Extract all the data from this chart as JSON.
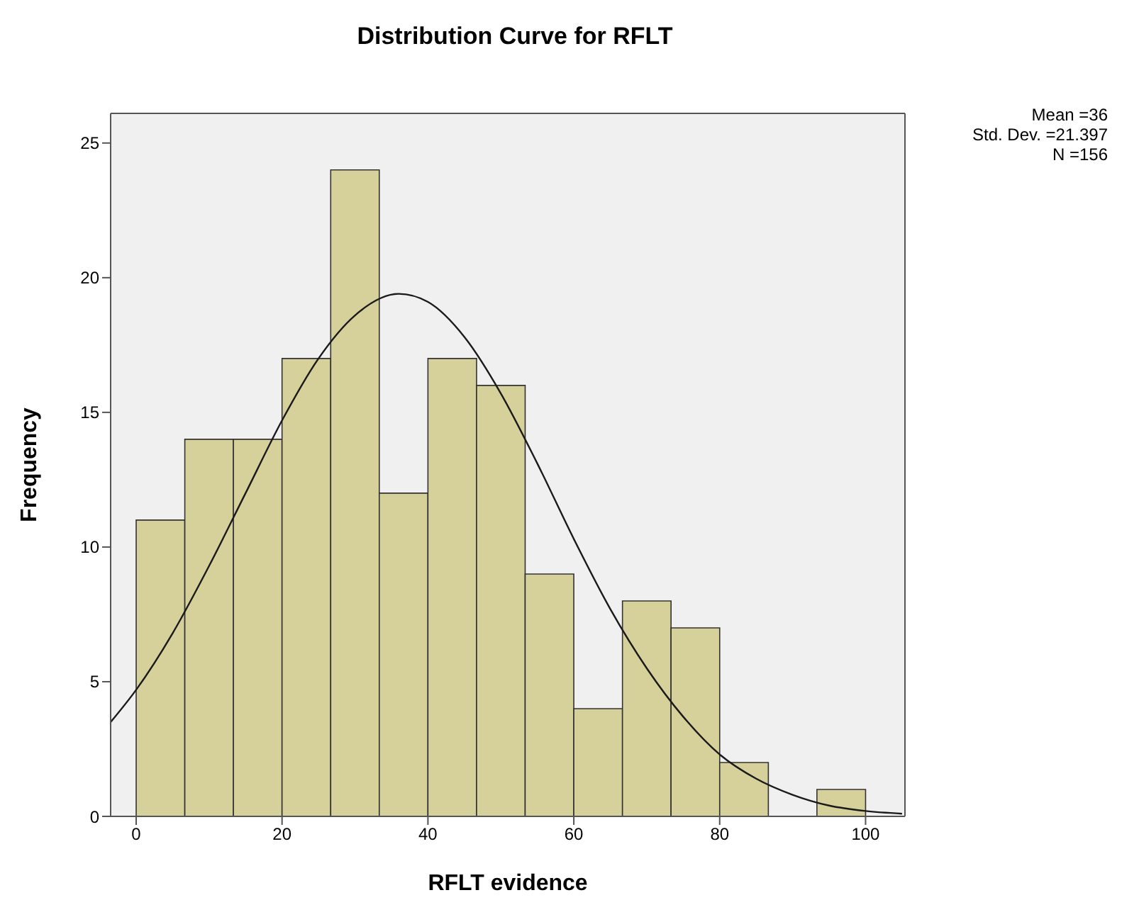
{
  "chart_data": {
    "type": "histogram",
    "title": "Distribution Curve for RFLT",
    "xlabel": "RFLT evidence",
    "ylabel": "Frequency",
    "bins": [
      0,
      6.67,
      13.33,
      20,
      26.67,
      33.33,
      40,
      46.67,
      53.33,
      60,
      66.67,
      73.33,
      80,
      86.67,
      93.33,
      100
    ],
    "values": [
      11,
      14,
      14,
      17,
      24,
      12,
      17,
      16,
      9,
      4,
      8,
      7,
      2,
      0,
      1
    ],
    "color": "#d6d09b",
    "series": [
      {
        "type": "line",
        "color": "#1a1a1a",
        "x": [
          -3.5,
          0,
          5,
          10,
          15,
          20,
          25,
          30,
          36,
          40,
          45,
          50,
          55,
          60,
          65,
          70,
          75,
          80,
          85,
          90,
          95,
          100,
          105
        ],
        "values": [
          3.5,
          4.7,
          6.8,
          9.3,
          12.0,
          14.7,
          17.0,
          18.6,
          19.4,
          19.1,
          17.8,
          15.7,
          13.1,
          10.3,
          7.7,
          5.5,
          3.7,
          2.3,
          1.4,
          0.8,
          0.4,
          0.2,
          0.1
        ]
      }
    ],
    "xlim": [
      -3.5,
      105.4
    ],
    "xticks": [
      0,
      20,
      40,
      60,
      80,
      100
    ],
    "ylim": [
      0,
      26.1
    ],
    "yticks": [
      0,
      5,
      10,
      15,
      20,
      25
    ],
    "annotations": [
      "Mean =36",
      "Std. Dev. =21.397",
      "N =156"
    ]
  }
}
